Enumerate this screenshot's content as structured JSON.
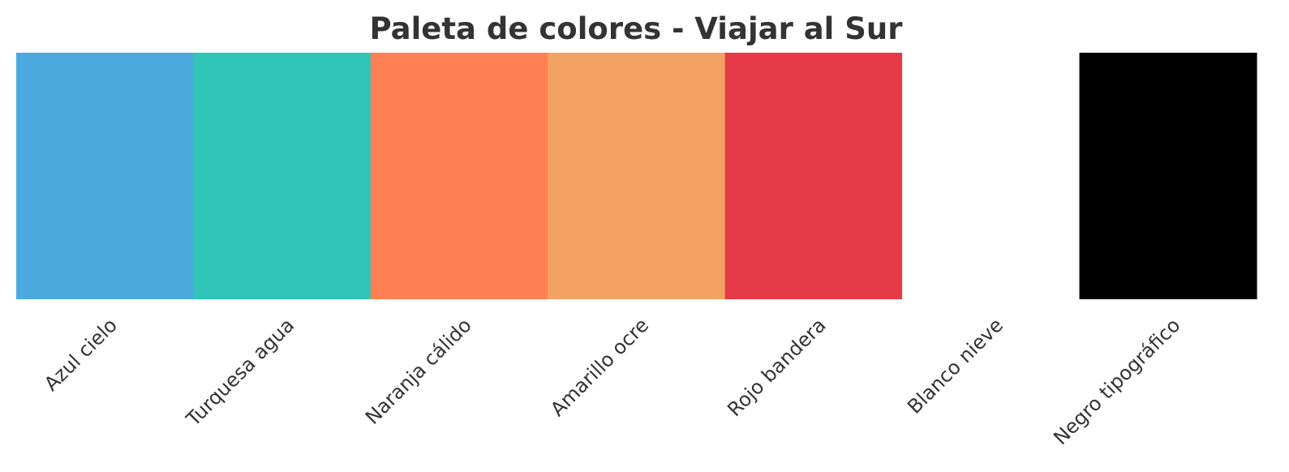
{
  "chart_data": {
    "type": "bar",
    "title": "Paleta de colores - Viajar al Sur",
    "xlabel": "",
    "ylabel": "",
    "grid": false,
    "categories": [
      "Azul cielo",
      "Turquesa agua",
      "Naranja cálido",
      "Amarillo ocre",
      "Rojo bandera",
      "Blanco nieve",
      "Negro tipográfico"
    ],
    "values": [
      1,
      1,
      1,
      1,
      1,
      1,
      1
    ],
    "colors": [
      "#4ca9de",
      "#30c5b6",
      "#ff8052",
      "#f2a262",
      "#e63946",
      "#ffffff",
      "#000000"
    ]
  }
}
